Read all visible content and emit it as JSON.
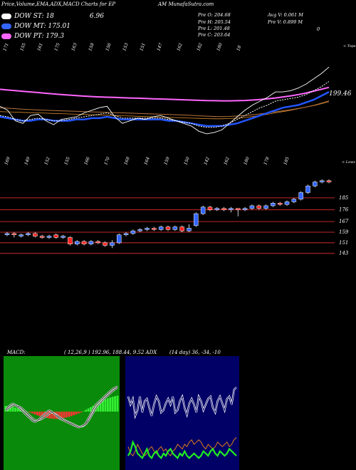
{
  "header": {
    "title": "Price,Volume,EMA,ADX,MACD Charts for EP",
    "site": "AM MunafaSutra.com"
  },
  "legend": [
    {
      "label": "DOW ST: 18",
      "value": "6.96",
      "color": "#ffffff"
    },
    {
      "label": "DOW MT: 175.01",
      "value": "",
      "color": "#3366ff"
    },
    {
      "label": "DOW PT: 179.3",
      "value": "",
      "color": "#ff66ff"
    }
  ],
  "quote": {
    "open": "Pre O: 204.68",
    "high": "Pre H: 205.54",
    "low": "Pre L: 201.48",
    "close": "Pre C: 203.64",
    "avg_volume": "Avg V: 0.061 M",
    "prev_volume": "Pre V: 0.899 M",
    "zero_label": "0"
  },
  "colors": {
    "ema_short": "#ffffff",
    "ema_mid": "#2255ff",
    "ema_long": "#ff66ff",
    "ema_brown": "#b8733a",
    "candle_up": "#3366ff",
    "candle_down": "#ff2222",
    "sr_line": "#aa2222",
    "macd_panel": "#0a8a0a",
    "adx_panel": "#000066",
    "hist_pos": "#33ee33",
    "hist_neg": "#ff3333"
  },
  "chart_data": [
    {
      "type": "line",
      "name": "ema-panel",
      "top_labels": [
        "171",
        "155",
        "161",
        "175",
        "163",
        "158",
        "156",
        "153",
        "151",
        "147",
        "162",
        "182",
        "180",
        "18"
      ],
      "top_right_label": "< Tops",
      "bottom_labels": [
        "169",
        "149",
        "152",
        "155",
        "166",
        "170",
        "168",
        "164",
        "159",
        "150",
        "142",
        "162",
        "180",
        "178",
        "185"
      ],
      "bottom_right_label": "< Lows",
      "last_value_label": "199.46",
      "price": [
        171,
        168,
        160,
        158,
        164,
        165,
        160,
        157,
        161,
        162,
        163,
        166,
        168,
        170,
        171,
        163,
        158,
        160,
        162,
        161,
        163,
        164,
        162,
        160,
        158,
        156,
        152,
        150,
        151,
        153,
        158,
        163,
        168,
        172,
        175,
        178,
        182,
        182,
        183,
        185,
        188,
        192,
        196,
        201
      ],
      "ema_white": [
        164,
        163,
        161,
        160,
        161,
        162,
        161,
        160,
        160,
        161,
        162,
        163,
        164,
        165,
        166,
        164,
        162,
        162,
        162,
        162,
        162,
        162,
        161,
        160,
        159,
        158,
        156,
        155,
        155,
        156,
        158,
        161,
        164,
        167,
        170,
        172,
        175,
        176,
        177,
        178,
        180,
        183,
        186,
        190
      ],
      "ema_blue": [
        163,
        162,
        161,
        160,
        160,
        161,
        161,
        160,
        160,
        160,
        161,
        161,
        162,
        162,
        163,
        162,
        161,
        161,
        161,
        161,
        161,
        161,
        160,
        160,
        159,
        158,
        157,
        156,
        156,
        156,
        157,
        158,
        160,
        162,
        164,
        166,
        168,
        170,
        171,
        172,
        174,
        176,
        179,
        182
      ],
      "ema_pink": [
        184,
        183.5,
        183,
        182.5,
        182,
        181.5,
        181,
        180.5,
        180,
        179.6,
        179.2,
        178.8,
        178.5,
        178.2,
        178,
        177.8,
        177.6,
        177.4,
        177.2,
        177,
        176.8,
        176.6,
        176.4,
        176.2,
        176,
        175.8,
        175.6,
        175.4,
        175.3,
        175.2,
        175.2,
        175.3,
        175.5,
        175.8,
        176.2,
        176.8,
        177.4,
        178.2,
        179,
        180,
        181.2,
        182.6,
        184,
        185.5
      ],
      "ema_brown": [
        170,
        169.6,
        169.2,
        168.8,
        168.5,
        168.2,
        168,
        167.8,
        167.6,
        167.4,
        167.2,
        167,
        166.8,
        166.6,
        166.4,
        166.2,
        166,
        165.8,
        165.6,
        165.4,
        165.2,
        165,
        164.8,
        164.6,
        164.4,
        164.1,
        163.8,
        163.5,
        163.3,
        163.2,
        163.3,
        163.6,
        164,
        164.6,
        165.2,
        166,
        166.8,
        167.6,
        168.4,
        169.4,
        170.4,
        171.6,
        173,
        174.6
      ],
      "ema_orange": [
        167,
        166.8,
        166.6,
        166.4,
        166.2,
        166,
        165.8,
        165.6,
        165.4,
        165.2,
        165,
        164.8,
        164.6,
        164.4,
        164.2,
        164,
        163.8,
        163.6,
        163.4,
        163.2,
        163,
        162.8,
        162.6,
        162.4,
        162.2,
        162,
        161.8,
        161.6,
        161.5,
        161.5,
        161.7,
        162,
        162.5,
        163.2,
        164,
        165,
        166,
        167,
        168,
        169.2,
        170.4,
        171.8,
        173.4,
        175.2
      ]
    },
    {
      "type": "candlestick",
      "name": "price-panel",
      "levels": [
        185,
        176,
        167,
        159,
        151,
        143
      ],
      "ylim": [
        138,
        200
      ],
      "candles": [
        {
          "o": 157,
          "c": 158,
          "h": 159,
          "l": 156
        },
        {
          "o": 158,
          "c": 157,
          "h": 159,
          "l": 155
        },
        {
          "o": 156,
          "c": 157,
          "h": 158,
          "l": 155
        },
        {
          "o": 157,
          "c": 158,
          "h": 159,
          "l": 156
        },
        {
          "o": 158,
          "c": 156,
          "h": 159,
          "l": 155
        },
        {
          "o": 156,
          "c": 155,
          "h": 157,
          "l": 154
        },
        {
          "o": 155,
          "c": 156,
          "h": 157,
          "l": 154
        },
        {
          "o": 157,
          "c": 155,
          "h": 158,
          "l": 154
        },
        {
          "o": 155,
          "c": 156,
          "h": 157,
          "l": 154
        },
        {
          "o": 155,
          "c": 150,
          "h": 156,
          "l": 149
        },
        {
          "o": 150,
          "c": 152,
          "h": 153,
          "l": 149
        },
        {
          "o": 152,
          "c": 150,
          "h": 153,
          "l": 149
        },
        {
          "o": 150,
          "c": 152,
          "h": 153,
          "l": 149
        },
        {
          "o": 152,
          "c": 151,
          "h": 153,
          "l": 150
        },
        {
          "o": 151,
          "c": 149,
          "h": 152,
          "l": 148
        },
        {
          "o": 149,
          "c": 151,
          "h": 153,
          "l": 147
        },
        {
          "o": 151,
          "c": 157,
          "h": 158,
          "l": 150
        },
        {
          "o": 157,
          "c": 158,
          "h": 159,
          "l": 156
        },
        {
          "o": 158,
          "c": 160,
          "h": 161,
          "l": 157
        },
        {
          "o": 160,
          "c": 161,
          "h": 162,
          "l": 159
        },
        {
          "o": 161,
          "c": 162,
          "h": 163,
          "l": 160
        },
        {
          "o": 162,
          "c": 161,
          "h": 163,
          "l": 160
        },
        {
          "o": 161,
          "c": 163,
          "h": 164,
          "l": 160
        },
        {
          "o": 163,
          "c": 161,
          "h": 164,
          "l": 160
        },
        {
          "o": 161,
          "c": 163,
          "h": 164,
          "l": 160
        },
        {
          "o": 163,
          "c": 160,
          "h": 164,
          "l": 159
        },
        {
          "o": 160,
          "c": 162,
          "h": 165,
          "l": 159
        },
        {
          "o": 164,
          "c": 173,
          "h": 174,
          "l": 163
        },
        {
          "o": 173,
          "c": 178,
          "h": 179,
          "l": 172
        },
        {
          "o": 178,
          "c": 176,
          "h": 179,
          "l": 175
        },
        {
          "o": 176,
          "c": 177,
          "h": 178,
          "l": 175
        },
        {
          "o": 177,
          "c": 176,
          "h": 178,
          "l": 175
        },
        {
          "o": 176,
          "c": 177,
          "h": 178,
          "l": 174
        },
        {
          "o": 177,
          "c": 176,
          "h": 177,
          "l": 171
        },
        {
          "o": 176,
          "c": 177,
          "h": 178,
          "l": 175
        },
        {
          "o": 177,
          "c": 179,
          "h": 180,
          "l": 176
        },
        {
          "o": 179,
          "c": 177,
          "h": 180,
          "l": 176
        },
        {
          "o": 177,
          "c": 179,
          "h": 180,
          "l": 176
        },
        {
          "o": 179,
          "c": 181,
          "h": 182,
          "l": 178
        },
        {
          "o": 181,
          "c": 180,
          "h": 182,
          "l": 179
        },
        {
          "o": 180,
          "c": 182,
          "h": 183,
          "l": 179
        },
        {
          "o": 182,
          "c": 184,
          "h": 185,
          "l": 181
        },
        {
          "o": 184,
          "c": 189,
          "h": 190,
          "l": 183
        },
        {
          "o": 189,
          "c": 194,
          "h": 195,
          "l": 188
        },
        {
          "o": 194,
          "c": 197,
          "h": 198,
          "l": 193
        },
        {
          "o": 197,
          "c": 198,
          "h": 199,
          "l": 196
        },
        {
          "o": 198,
          "c": 197,
          "h": 199,
          "l": 196
        }
      ]
    },
    {
      "type": "bar",
      "name": "macd-panel",
      "title": "MACD:",
      "params": "( 12,26,9 ) 192.96, 188.44, 9.52 ADX",
      "histogram": [
        2.5,
        2.4,
        2.2,
        2,
        1.8,
        1.5,
        1.2,
        0.8,
        0.4,
        0,
        -0.4,
        -0.8,
        -1.2,
        -1.6,
        -2,
        -2.3,
        -2.6,
        -2.8,
        -3,
        -3.1,
        -3.2,
        -3.2,
        -3.1,
        -3,
        -2.8,
        -2.6,
        -2.3,
        -2,
        -1.6,
        -1.2,
        -0.8,
        -0.4,
        0.2,
        0.8,
        1.4,
        2,
        2.6,
        3.2,
        3.8,
        4.4,
        5,
        5.4,
        5.8,
        6.2,
        6.5,
        6.8,
        7
      ],
      "macd_line": [
        1,
        2,
        3,
        3.5,
        3,
        2,
        1,
        0,
        -1,
        -2,
        -3,
        -4,
        -4.5,
        -4,
        -3,
        -2,
        -1,
        0,
        0.5,
        0,
        -1,
        -2,
        -3,
        -3.5,
        -4,
        -4.5,
        -5,
        -5.5,
        -6,
        -6.5,
        -7,
        -6.5,
        -6,
        -5,
        -3,
        -1,
        1,
        3,
        4,
        5,
        6,
        7,
        8,
        9,
        10,
        10.5,
        11
      ],
      "signal_line": [
        0.5,
        1.2,
        2,
        2.6,
        2.8,
        2.5,
        2,
        1.2,
        0.2,
        -0.8,
        -1.8,
        -2.8,
        -3.6,
        -3.9,
        -3.7,
        -3.2,
        -2.5,
        -1.7,
        -0.8,
        -0.5,
        -0.8,
        -1.5,
        -2.3,
        -3,
        -3.6,
        -4.1,
        -4.6,
        -5.1,
        -5.6,
        -6.1,
        -6.6,
        -6.6,
        -6.3,
        -5.6,
        -4.2,
        -2.4,
        -0.6,
        1.4,
        2.8,
        3.9,
        5,
        6,
        7,
        8,
        9,
        9.8,
        10.4
      ]
    },
    {
      "type": "line",
      "name": "adx-panel",
      "params": "(14 day) 36, -34, -10",
      "adx_white": [
        62,
        55,
        60,
        45,
        50,
        62,
        48,
        58,
        60,
        52,
        45,
        55,
        62,
        58,
        48,
        50,
        56,
        60,
        55,
        62,
        48,
        50,
        58,
        62,
        52,
        46,
        56,
        60,
        55,
        48,
        62,
        58,
        50,
        55,
        60,
        62,
        52,
        48,
        58,
        62,
        56,
        50,
        60,
        62,
        55,
        68,
        70
      ],
      "di_plus": [
        10,
        14,
        22,
        18,
        12,
        10,
        8,
        12,
        16,
        10,
        8,
        12,
        14,
        10,
        8,
        12,
        10,
        14,
        16,
        12,
        10,
        8,
        12,
        10,
        14,
        10,
        8,
        10,
        12,
        10,
        8,
        10,
        14,
        12,
        10,
        14,
        16,
        12,
        10,
        14,
        12,
        10,
        12,
        16,
        14,
        12,
        10
      ],
      "di_minus": [
        18,
        12,
        10,
        14,
        20,
        16,
        12,
        10,
        12,
        16,
        18,
        14,
        12,
        16,
        18,
        14,
        16,
        12,
        10,
        14,
        16,
        20,
        18,
        16,
        20,
        18,
        22,
        24,
        20,
        22,
        24,
        22,
        18,
        16,
        20,
        18,
        16,
        18,
        22,
        20,
        18,
        20,
        22,
        18,
        20,
        24,
        26
      ]
    }
  ]
}
